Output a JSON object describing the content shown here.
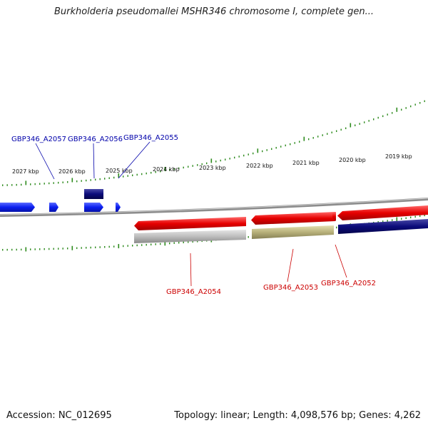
{
  "title": "Burkholderia pseudomallei MSHR346 chromosome I, complete gen...",
  "footer": {
    "accession": "Accession: NC_012695",
    "summary": "Topology: linear; Length: 4,098,576 bp; Genes: 4,262"
  },
  "colors": {
    "tick": "#2e8b1e",
    "forward_gene": "#0a1ef0",
    "forward_cds": "#0b0b7a",
    "reverse_gene": "#e60000",
    "reverse_cds_grey": "#bdbdbd",
    "reverse_cds_olive": "#b7b07a",
    "reverse_cds_navy": "#0b0b7a",
    "backbone": "#8c8c8c"
  },
  "ruler": {
    "labels": [
      "2027 kbp",
      "2026 kbp",
      "2025 kbp",
      "2024 kbp",
      "2023 kbp",
      "2022 kbp",
      "2021 kbp",
      "2020 kbp",
      "2019 kbp"
    ]
  },
  "gene_labels": {
    "forward": [
      "GBP346_A2057",
      "GBP346_A2056",
      "GBP346_A2055"
    ],
    "reverse": [
      "GBP346_A2054",
      "GBP346_A2053",
      "GBP346_A2052"
    ]
  }
}
